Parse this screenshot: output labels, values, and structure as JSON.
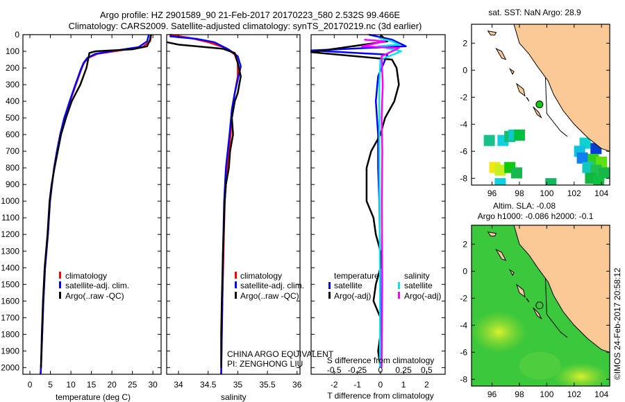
{
  "title": {
    "line1": "Argo profile: HZ 2901589_90 21-Feb-2017 20170223_580 2.532S 99.466E",
    "line2": "Climatology: CARS2009. Satellite-adjusted climatology: synTS_20170219.nc (3d earlier)"
  },
  "credit": "©IMOS 24-Feb-2017 20:58:12",
  "pi_text": {
    "line1": "CHINA ARGO EQUIVALENT",
    "line2": "PI: ZENGHONG LIU"
  },
  "colors": {
    "climatology": "#ff0000",
    "satellite": "#0000ff",
    "argo": "#000000",
    "sal_satellite": "#00e5ee",
    "sal_argo": "#ff00ff",
    "land": "#fbc996"
  },
  "chart_data": [
    {
      "type": "line",
      "name": "temperature",
      "xlabel": "temperature (deg C)",
      "xlim": [
        -1.7,
        32
      ],
      "ylim": [
        0,
        2040
      ],
      "xticks": [
        "0",
        "5",
        "10",
        "15",
        "20",
        "25",
        "30"
      ],
      "yticks": [
        "0",
        "100",
        "200",
        "300",
        "400",
        "500",
        "600",
        "700",
        "800",
        "900",
        "1000",
        "1100",
        "1200",
        "1300",
        "1400",
        "1500",
        "1600",
        "1700",
        "1800",
        "1900",
        "2000"
      ],
      "legend": [
        "climatology",
        "satellite-adj. clim.",
        "Argo(..raw -QC)"
      ],
      "series": [
        {
          "name": "climatology",
          "color": "#ff0000",
          "points": [
            [
              29.6,
              0
            ],
            [
              29.3,
              40
            ],
            [
              27.5,
              75
            ],
            [
              22,
              95
            ],
            [
              16.5,
              115
            ],
            [
              14.2,
              140
            ],
            [
              13.2,
              170
            ],
            [
              12.5,
              210
            ],
            [
              11.2,
              300
            ],
            [
              9.8,
              400
            ],
            [
              8.4,
              500
            ],
            [
              7.4,
              600
            ],
            [
              6.6,
              700
            ],
            [
              5.9,
              800
            ],
            [
              5.4,
              900
            ],
            [
              4.9,
              1000
            ],
            [
              4.4,
              1200
            ],
            [
              3.7,
              1400
            ],
            [
              3.3,
              1600
            ],
            [
              3.0,
              1800
            ],
            [
              2.7,
              2000
            ],
            [
              2.6,
              2040
            ]
          ]
        },
        {
          "name": "satellite-adj. clim.",
          "color": "#0000ff",
          "points": [
            [
              29.0,
              0
            ],
            [
              28.6,
              40
            ],
            [
              26.5,
              75
            ],
            [
              21,
              95
            ],
            [
              16,
              115
            ],
            [
              14,
              140
            ],
            [
              13.1,
              170
            ],
            [
              12.4,
              210
            ],
            [
              11.1,
              300
            ],
            [
              9.7,
              400
            ],
            [
              8.4,
              500
            ],
            [
              7.4,
              600
            ],
            [
              6.6,
              700
            ],
            [
              5.9,
              800
            ],
            [
              5.4,
              900
            ],
            [
              4.9,
              1000
            ],
            [
              4.4,
              1200
            ],
            [
              3.7,
              1400
            ],
            [
              3.3,
              1600
            ],
            [
              3.0,
              1800
            ],
            [
              2.7,
              2000
            ],
            [
              2.6,
              2040
            ]
          ]
        },
        {
          "name": "Argo(..raw -QC)",
          "color": "#000000",
          "points": [
            [
              29.5,
              0
            ],
            [
              29.3,
              30
            ],
            [
              28.6,
              70
            ],
            [
              25,
              88
            ],
            [
              16,
              100
            ],
            [
              14.5,
              110
            ],
            [
              14.2,
              150
            ],
            [
              13.8,
              200
            ],
            [
              12.3,
              300
            ],
            [
              10.2,
              400
            ],
            [
              8.8,
              500
            ],
            [
              7.6,
              600
            ],
            [
              6.8,
              700
            ],
            [
              6.0,
              800
            ],
            [
              5.3,
              900
            ],
            [
              4.8,
              1000
            ],
            [
              4.3,
              1200
            ],
            [
              3.6,
              1400
            ],
            [
              3.2,
              1600
            ],
            [
              2.9,
              1800
            ],
            [
              2.7,
              2000
            ]
          ]
        }
      ]
    },
    {
      "type": "line",
      "name": "salinity",
      "xlabel": "salinity",
      "xlim": [
        33.8,
        36.05
      ],
      "ylim": [
        0,
        2040
      ],
      "xticks": [
        "34",
        "34.5",
        "35",
        "35.5",
        "36"
      ],
      "legend": [
        "climatology",
        "satellite-adj. clim.",
        "Argo(..raw -QC)"
      ],
      "series": [
        {
          "name": "climatology",
          "color": "#ff0000",
          "points": [
            [
              33.85,
              0
            ],
            [
              34.2,
              20
            ],
            [
              34.5,
              45
            ],
            [
              34.8,
              80
            ],
            [
              34.95,
              120
            ],
            [
              35.0,
              170
            ],
            [
              35.0,
              250
            ],
            [
              34.95,
              350
            ],
            [
              34.9,
              450
            ],
            [
              34.88,
              600
            ],
            [
              34.82,
              800
            ],
            [
              34.78,
              1000
            ],
            [
              34.76,
              1300
            ],
            [
              34.74,
              1600
            ],
            [
              34.73,
              1800
            ],
            [
              34.72,
              2040
            ]
          ]
        },
        {
          "name": "satellite-adj. clim.",
          "color": "#0000ff",
          "points": [
            [
              33.85,
              10
            ],
            [
              34.3,
              25
            ],
            [
              34.6,
              45
            ],
            [
              34.85,
              90
            ],
            [
              35.0,
              130
            ],
            [
              35.05,
              190
            ],
            [
              35.0,
              270
            ],
            [
              34.95,
              350
            ],
            [
              34.9,
              450
            ],
            [
              34.86,
              600
            ],
            [
              34.8,
              800
            ],
            [
              34.77,
              1000
            ],
            [
              34.75,
              1300
            ],
            [
              34.74,
              1600
            ],
            [
              34.73,
              1800
            ],
            [
              34.72,
              2040
            ]
          ]
        },
        {
          "name": "Argo(..raw -QC)",
          "color": "#000000",
          "points": [
            [
              33.8,
              45
            ],
            [
              34.0,
              60
            ],
            [
              34.3,
              70
            ],
            [
              34.75,
              85
            ],
            [
              34.95,
              110
            ],
            [
              35.0,
              170
            ],
            [
              35.05,
              250
            ],
            [
              35.0,
              350
            ],
            [
              34.95,
              400
            ],
            [
              34.9,
              500
            ],
            [
              34.92,
              600
            ],
            [
              34.87,
              700
            ],
            [
              34.85,
              800
            ],
            [
              34.8,
              900
            ],
            [
              34.78,
              1000
            ],
            [
              34.75,
              1300
            ],
            [
              34.73,
              1600
            ],
            [
              34.72,
              1800
            ],
            [
              34.72,
              2000
            ]
          ]
        }
      ]
    },
    {
      "type": "line",
      "name": "difference",
      "xlabel": "T difference from climatology",
      "xlabel2": "S difference from climatology",
      "xlim": [
        -3,
        2.8
      ],
      "ylim": [
        0,
        2040
      ],
      "xticks": [
        "-2",
        "-1",
        "0",
        "1",
        "2"
      ],
      "xticks2": [
        "-0.5",
        "-0.25",
        "0",
        "0.25",
        "0.5"
      ],
      "legend_titles": [
        "temperature",
        "salinity"
      ],
      "legend": [
        "satellite",
        "Argo(-adj)",
        "satellite",
        "Argo(-adj)"
      ],
      "series": [
        {
          "name": "temperature satellite",
          "color": "#0000ff",
          "points": [
            [
              -0.5,
              0
            ],
            [
              0.5,
              30
            ],
            [
              1.1,
              70
            ],
            [
              -3,
              95
            ],
            [
              0.3,
              120
            ],
            [
              -0.1,
              250
            ],
            [
              -0.2,
              400
            ],
            [
              -0.1,
              600
            ],
            [
              -0.1,
              800
            ],
            [
              -0.05,
              1000
            ],
            [
              0,
              1500
            ],
            [
              0,
              2000
            ]
          ]
        },
        {
          "name": "temperature Argo(-adj)",
          "color": "#000000",
          "points": [
            [
              0,
              0
            ],
            [
              0.3,
              40
            ],
            [
              -3,
              105
            ],
            [
              0.5,
              150
            ],
            [
              0.7,
              200
            ],
            [
              0.8,
              300
            ],
            [
              0.6,
              400
            ],
            [
              0.2,
              500
            ],
            [
              0,
              600
            ],
            [
              -0.4,
              700
            ],
            [
              -0.6,
              800
            ],
            [
              -0.6,
              900
            ],
            [
              -0.6,
              1000
            ],
            [
              -0.3,
              1100
            ],
            [
              -0.2,
              1200
            ],
            [
              0,
              1300
            ],
            [
              0,
              1400
            ],
            [
              -0.2,
              1500
            ],
            [
              -0.3,
              1600
            ],
            [
              0,
              1700
            ],
            [
              0,
              1800
            ],
            [
              -0.1,
              1900
            ],
            [
              0,
              2000
            ]
          ]
        },
        {
          "name": "salinity satellite",
          "color": "#00e5ee",
          "points": [
            [
              -0.08,
              20
            ],
            [
              0.5,
              40
            ],
            [
              0.8,
              60
            ],
            [
              -0.1,
              70
            ],
            [
              0.9,
              100
            ],
            [
              0,
              150
            ],
            [
              -0.05,
              300
            ],
            [
              -0.05,
              600
            ],
            [
              -0.04,
              1000
            ],
            [
              -0.02,
              1500
            ],
            [
              -0.02,
              2000
            ]
          ]
        },
        {
          "name": "salinity Argo(-adj)",
          "color": "#ff00ff",
          "points": [
            [
              -0.7,
              30
            ],
            [
              0.2,
              40
            ],
            [
              -0.8,
              70
            ],
            [
              0.8,
              80
            ],
            [
              0.05,
              130
            ],
            [
              0.1,
              300
            ],
            [
              0.05,
              500
            ],
            [
              0.08,
              700
            ],
            [
              0.06,
              1000
            ],
            [
              0.08,
              1500
            ],
            [
              0.05,
              2000
            ]
          ]
        }
      ]
    },
    {
      "type": "heatmap",
      "name": "sst-map",
      "title": "sat. SST: NaN Argo: 28.9",
      "xlim": [
        94.5,
        104.6
      ],
      "ylim": [
        -8.5,
        3.4
      ],
      "xticks": [
        "96",
        "98",
        "100",
        "102",
        "104"
      ],
      "yticks": [
        "2",
        "0",
        "-2",
        "-4",
        "-6",
        "-8"
      ],
      "argo_position": [
        99.466,
        -2.532
      ]
    },
    {
      "type": "heatmap",
      "name": "sla-map",
      "title": "Altim. SLA: -0.08",
      "subtitle": "Argo h1000: -0.086 h2000: -0.1",
      "xlim": [
        94.5,
        104.6
      ],
      "ylim": [
        -8.5,
        3.4
      ],
      "xticks": [
        "96",
        "98",
        "100",
        "102",
        "104"
      ],
      "yticks": [
        "2",
        "0",
        "-2",
        "-4",
        "-6",
        "-8"
      ],
      "argo_position": [
        99.466,
        -2.532
      ]
    }
  ]
}
